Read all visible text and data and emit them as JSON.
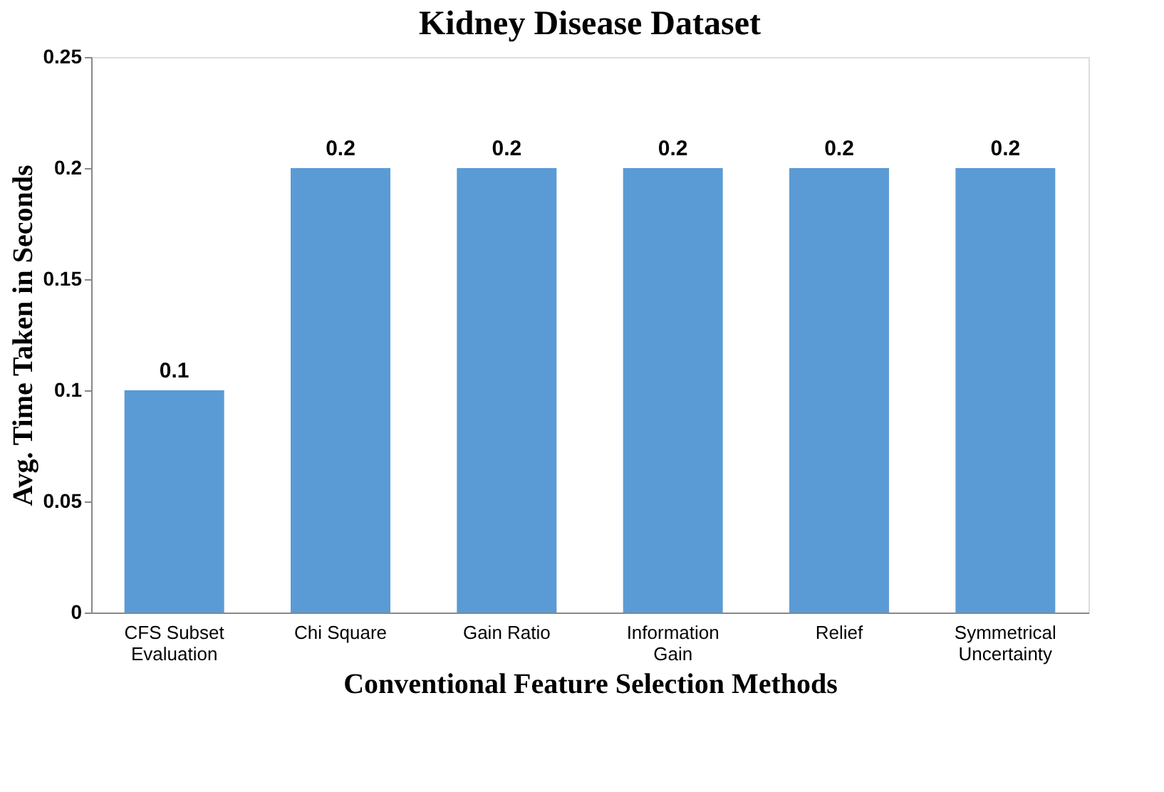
{
  "chart_data": {
    "type": "bar",
    "title": "Kidney Disease Dataset",
    "xlabel": "Conventional Feature Selection Methods",
    "ylabel": "Avg. Time Taken in Seconds",
    "categories": [
      "CFS Subset\nEvaluation",
      "Chi Square",
      "Gain Ratio",
      "Information\nGain",
      "Relief",
      "Symmetrical\nUncertainty"
    ],
    "values": [
      0.1,
      0.2,
      0.2,
      0.2,
      0.2,
      0.2
    ],
    "color": "#5b9bd5",
    "ylim": [
      0,
      0.25
    ],
    "yticks": [
      0,
      0.05,
      0.1,
      0.15,
      0.2,
      0.25
    ],
    "grid": false,
    "data_labels": true
  }
}
